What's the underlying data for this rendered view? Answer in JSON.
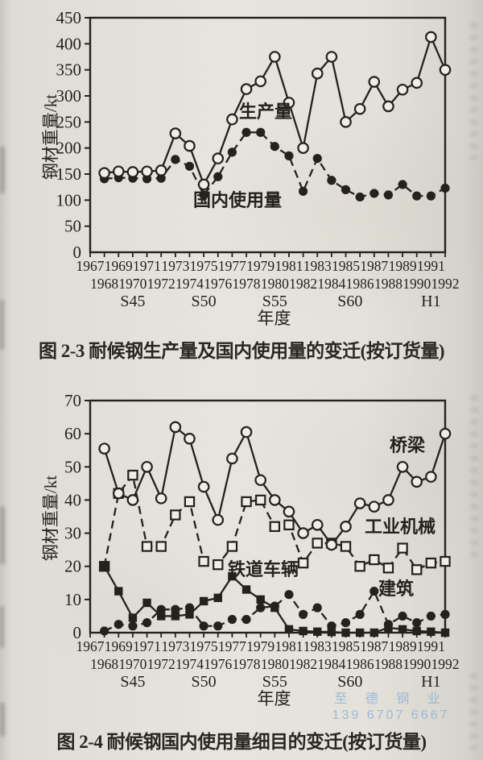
{
  "page": {
    "ink_color": "#24221f",
    "paper_color": "#e6e4dd",
    "watermark": {
      "line1": "至 德 钢 业",
      "line2": "139 6707 6667",
      "color": "#93b3d6"
    }
  },
  "chart_data": [
    {
      "type": "line",
      "title": "图 2-3  耐候钢生产量及国内使用量的变迁(按订货量)",
      "ylabel": "钢材重量/kt",
      "xlabel": "年度",
      "ylim": [
        0,
        450
      ],
      "ytick_step": 50,
      "grid": false,
      "axis_years_start": 1967,
      "axis_years_end": 1992,
      "data_start_year": 1968,
      "era_labels": [
        {
          "label": "S45",
          "x_year": 1970
        },
        {
          "label": "S50",
          "x_year": 1975
        },
        {
          "label": "S55",
          "x_year": 1980
        },
        {
          "label": "S60",
          "x_year": 1985.3
        },
        {
          "label": "H1",
          "x_year": 1991
        }
      ],
      "series": [
        {
          "key": "domestic_usage",
          "label": "国内使用量",
          "marker": "circle-filled",
          "line": "dashed",
          "values": [
            141,
            143,
            142,
            141,
            142,
            178,
            165,
            110,
            145,
            192,
            230,
            230,
            203,
            185,
            117,
            180,
            138,
            120,
            106,
            113,
            110,
            130,
            108,
            108,
            123
          ]
        },
        {
          "key": "production",
          "label": "生产量",
          "marker": "circle-open",
          "line": "solid",
          "values": [
            152,
            155,
            154,
            155,
            157,
            228,
            204,
            130,
            180,
            255,
            313,
            328,
            375,
            287,
            200,
            343,
            375,
            250,
            275,
            327,
            280,
            312,
            325,
            413,
            350
          ]
        }
      ]
    },
    {
      "type": "line",
      "title": "图 2-4  耐候钢国内使用量细目的变迁(按订货量)",
      "ylabel": "钢材重量/kt",
      "xlabel": "年度",
      "ylim": [
        0,
        70
      ],
      "ytick_step": 10,
      "grid": false,
      "axis_years_start": 1967,
      "axis_years_end": 1992,
      "data_start_year": 1968,
      "era_labels": [
        {
          "label": "S45",
          "x_year": 1970
        },
        {
          "label": "S50",
          "x_year": 1975
        },
        {
          "label": "S55",
          "x_year": 1980
        },
        {
          "label": "S60",
          "x_year": 1985.3
        },
        {
          "label": "H1",
          "x_year": 1991
        }
      ],
      "series": [
        {
          "key": "industrial_machinery",
          "label": "工业机械",
          "marker": "square-open",
          "line": "dashed",
          "values": [
            20,
            42,
            47.5,
            26,
            26,
            35.5,
            39.5,
            21.5,
            20.5,
            26,
            39.5,
            40,
            32,
            32.5,
            21,
            27,
            27,
            26,
            20,
            22,
            19.5,
            25.5,
            19,
            21,
            21.5
          ]
        },
        {
          "key": "building",
          "label": "建筑",
          "marker": "circle-filled",
          "line": "dashed",
          "values": [
            0.5,
            2.5,
            2,
            3,
            7,
            7,
            7.5,
            2,
            2,
            4,
            4,
            7.5,
            8,
            11.5,
            5.5,
            7.5,
            2,
            3,
            5.5,
            12.5,
            2.5,
            5,
            3,
            5,
            5.5
          ]
        },
        {
          "key": "railway_vehicles",
          "label": "铁道车辆",
          "marker": "square-filled",
          "line": "solid",
          "values": [
            20,
            12.5,
            4.5,
            9,
            5,
            5,
            5.5,
            9.5,
            10.5,
            17,
            13,
            10,
            7.5,
            1,
            0.5,
            0.3,
            0.2,
            0,
            0,
            0,
            1.5,
            1,
            0.5,
            0.3,
            0
          ]
        },
        {
          "key": "bridge",
          "label": "桥梁",
          "marker": "circle-open",
          "line": "solid",
          "values": [
            55.5,
            42,
            40,
            50,
            40.5,
            62,
            58.5,
            44,
            34,
            52.5,
            60.5,
            46,
            40,
            36.5,
            30,
            32.5,
            26.5,
            32,
            39,
            38,
            40,
            50,
            45.5,
            47,
            60
          ]
        }
      ]
    }
  ]
}
